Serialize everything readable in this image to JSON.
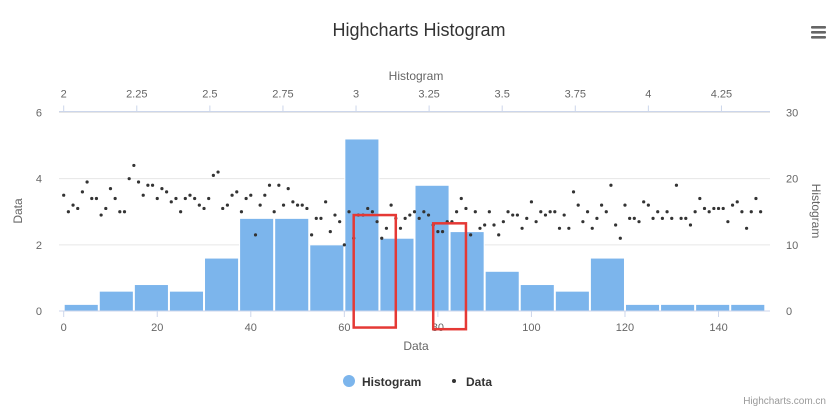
{
  "app": {
    "menu_icon": "hamburger-menu-icon",
    "credits": "Highcharts.com.cn"
  },
  "chart_data": {
    "type": "histogram+scatter",
    "title": "Highcharts Histogram",
    "xlabel_bottom": "Data",
    "xlabel_top": "Histogram",
    "ylabel_left": "Data",
    "ylabel_right": "Histogram",
    "x_bottom_range": [
      0,
      150
    ],
    "x_bottom_ticks": [
      "0",
      "20",
      "40",
      "60",
      "80",
      "100",
      "120",
      "140"
    ],
    "x_top_range": [
      2,
      4.4
    ],
    "x_top_ticks": [
      "2",
      "2.25",
      "2.5",
      "2.75",
      "3",
      "3.25",
      "3.5",
      "3.75",
      "4",
      "4.25"
    ],
    "y_left_range": [
      0,
      6
    ],
    "y_left_ticks": [
      "0",
      "2",
      "4",
      "6"
    ],
    "y_right_range": [
      0,
      30
    ],
    "y_right_ticks": [
      "0",
      "10",
      "20",
      "30"
    ],
    "grid": true,
    "legend_position": "bottom-center",
    "colors": {
      "histogram": "#7cb5ec",
      "data": "#333333",
      "highlight": "#e53935"
    },
    "histogram": {
      "name": "Histogram",
      "bin_width": 0.12,
      "bins": [
        {
          "x": 2.0,
          "y": 1
        },
        {
          "x": 2.12,
          "y": 3
        },
        {
          "x": 2.24,
          "y": 4
        },
        {
          "x": 2.36,
          "y": 3
        },
        {
          "x": 2.48,
          "y": 8
        },
        {
          "x": 2.6,
          "y": 14
        },
        {
          "x": 2.72,
          "y": 14
        },
        {
          "x": 2.84,
          "y": 10
        },
        {
          "x": 2.96,
          "y": 26
        },
        {
          "x": 3.08,
          "y": 11
        },
        {
          "x": 3.2,
          "y": 19
        },
        {
          "x": 3.32,
          "y": 12
        },
        {
          "x": 3.44,
          "y": 6
        },
        {
          "x": 3.56,
          "y": 4
        },
        {
          "x": 3.68,
          "y": 3
        },
        {
          "x": 3.8,
          "y": 8
        },
        {
          "x": 3.92,
          "y": 1
        },
        {
          "x": 4.04,
          "y": 1
        },
        {
          "x": 4.16,
          "y": 1
        },
        {
          "x": 4.28,
          "y": 1
        }
      ]
    },
    "scatter": {
      "name": "Data",
      "values": [
        3.5,
        3.0,
        3.2,
        3.1,
        3.6,
        3.9,
        3.4,
        3.4,
        2.9,
        3.1,
        3.7,
        3.4,
        3.0,
        3.0,
        4.0,
        4.4,
        3.9,
        3.5,
        3.8,
        3.8,
        3.4,
        3.7,
        3.6,
        3.3,
        3.4,
        3.0,
        3.4,
        3.5,
        3.4,
        3.2,
        3.1,
        3.4,
        4.1,
        4.2,
        3.1,
        3.2,
        3.5,
        3.6,
        3.0,
        3.4,
        3.5,
        2.3,
        3.2,
        3.5,
        3.8,
        3.0,
        3.8,
        3.2,
        3.7,
        3.3,
        3.2,
        3.2,
        3.1,
        2.3,
        2.8,
        2.8,
        3.3,
        2.4,
        2.9,
        2.7,
        2.0,
        3.0,
        2.2,
        2.9,
        2.9,
        3.1,
        3.0,
        2.7,
        2.2,
        2.5,
        3.2,
        2.8,
        2.5,
        2.8,
        2.9,
        3.0,
        2.8,
        3.0,
        2.9,
        2.6,
        2.4,
        2.4,
        2.7,
        2.7,
        3.0,
        3.4,
        3.1,
        2.3,
        3.0,
        2.5,
        2.6,
        3.0,
        2.6,
        2.3,
        2.7,
        3.0,
        2.9,
        2.9,
        2.5,
        2.8,
        3.3,
        2.7,
        3.0,
        2.9,
        3.0,
        3.0,
        2.5,
        2.9,
        2.5,
        3.6,
        3.2,
        2.7,
        3.0,
        2.5,
        2.8,
        3.2,
        3.0,
        3.8,
        2.6,
        2.2,
        3.2,
        2.8,
        2.8,
        2.7,
        3.3,
        3.2,
        2.8,
        3.0,
        2.8,
        3.0,
        2.8,
        3.8,
        2.8,
        2.8,
        2.6,
        3.0,
        3.4,
        3.1,
        3.0,
        3.1,
        3.1,
        3.1,
        2.7,
        3.2,
        3.3,
        3.0,
        2.5,
        3.0,
        3.4,
        3.0
      ]
    },
    "highlights": [
      {
        "x_from": 62,
        "x_to": 71,
        "y_from": -0.5,
        "y_to": 2.9
      },
      {
        "x_from": 79,
        "x_to": 86,
        "y_from": -0.55,
        "y_to": 2.65
      }
    ]
  },
  "legend": {
    "items": [
      {
        "label": "Histogram",
        "symbol": "circle"
      },
      {
        "label": "Data",
        "symbol": "dot"
      }
    ]
  }
}
